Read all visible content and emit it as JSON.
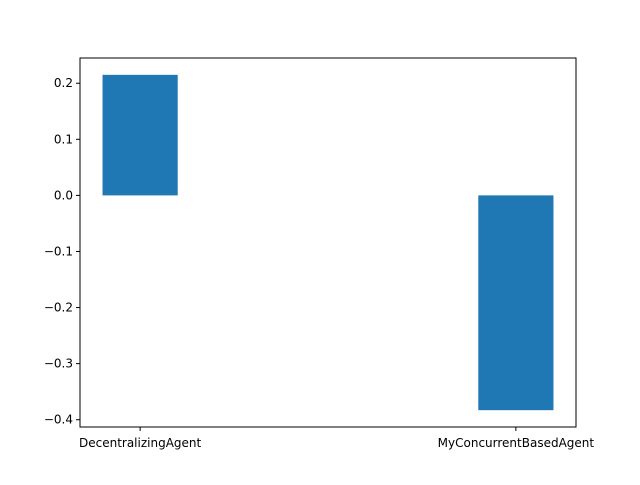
{
  "chart_data": {
    "type": "bar",
    "title": "",
    "xlabel": "",
    "ylabel": "",
    "categories": [
      "DecentralizingAgent",
      "MyConcurrentBasedAgent"
    ],
    "values": [
      0.215,
      -0.383
    ],
    "ylim": [
      -0.413,
      0.245
    ],
    "yticks": [
      0.2,
      0.1,
      0.0,
      -0.1,
      -0.2,
      -0.3,
      -0.4
    ],
    "ytick_labels": [
      "0.2",
      "0.1",
      "0.0",
      "−0.1",
      "−0.2",
      "−0.3",
      "−0.4"
    ],
    "grid": false,
    "legend": "none",
    "colors": {
      "bar": "#1f77b4",
      "axis": "#000000",
      "background": "#ffffff"
    }
  }
}
